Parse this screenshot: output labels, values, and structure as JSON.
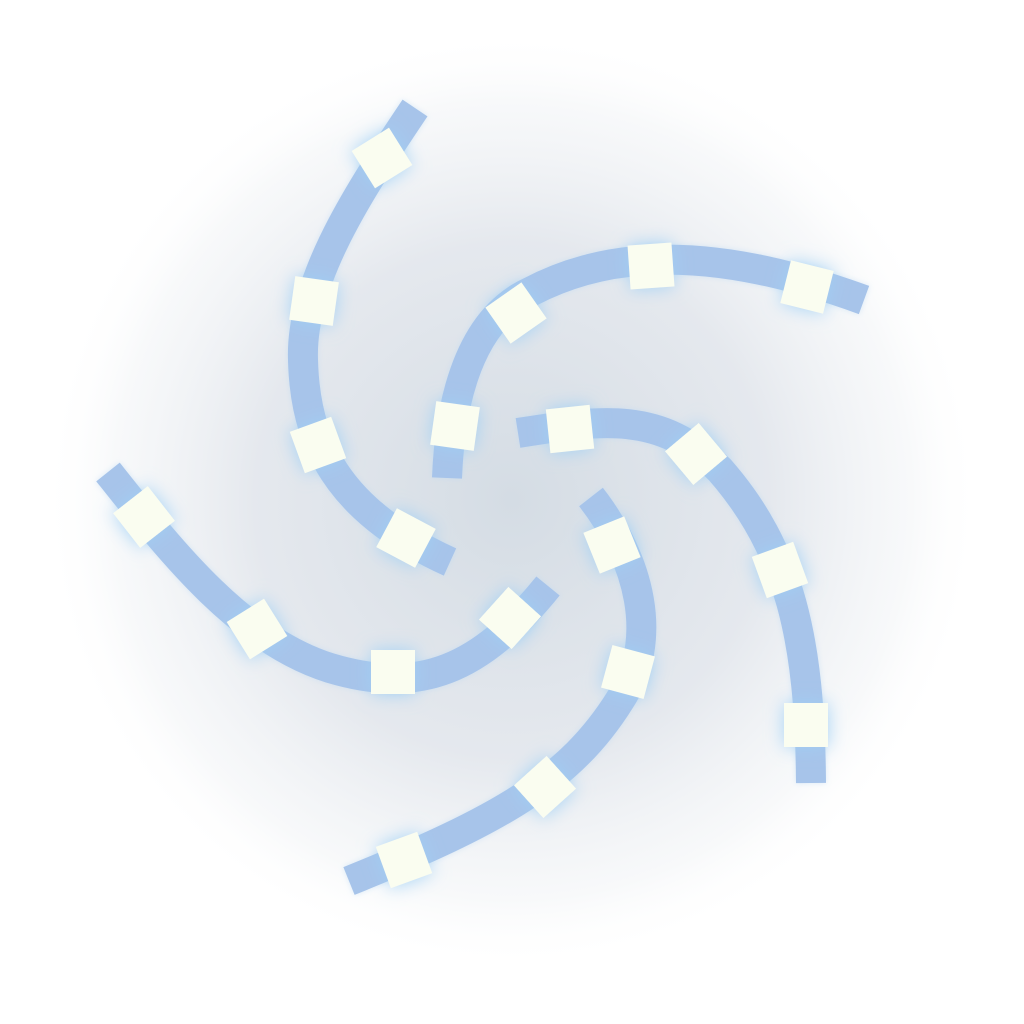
{
  "colors": {
    "background": "#ffffff",
    "center_glow": "#d3dbe3",
    "arm_stroke": "#a7c4ea",
    "node_fill": "#fafdf0",
    "node_glow": "#9fd0f5"
  },
  "figure": {
    "kind": "pinwheel-swirl-logo",
    "arm_count": 5,
    "node_shape": "square"
  }
}
